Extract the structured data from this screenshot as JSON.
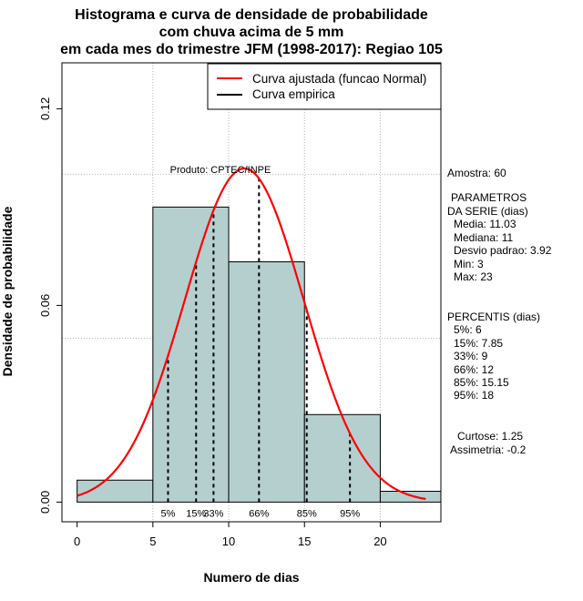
{
  "chart_data": {
    "type": "histogram",
    "title": [
      "Histograma e curva de densidade de probabilidade",
      "com chuva acima de 5 mm",
      "em cada mes do trimestre JFM (1998-2017): Regiao 105"
    ],
    "xlabel": "Numero de dias",
    "ylabel": "Densidade de probabilidade",
    "xlim": [
      -1,
      24
    ],
    "ylim": [
      -0.006,
      0.134
    ],
    "xticks": [
      0,
      5,
      10,
      15,
      20
    ],
    "xtick_labels": [
      "0",
      "5",
      "10",
      "15",
      "20"
    ],
    "yticks": [
      0.0,
      0.06,
      0.12
    ],
    "ytick_labels": [
      "0.00",
      "0.06",
      "0.12"
    ],
    "grid_x": [
      5,
      10,
      15,
      20
    ],
    "grid_y": [
      0.05,
      0.1
    ],
    "bins": [
      {
        "start": 0,
        "end": 5,
        "density": 0.0067
      },
      {
        "start": 5,
        "end": 10,
        "density": 0.09
      },
      {
        "start": 10,
        "end": 15,
        "density": 0.0733
      },
      {
        "start": 15,
        "end": 20,
        "density": 0.0267
      },
      {
        "start": 20,
        "end": 25,
        "density": 0.0033
      }
    ],
    "normal_fit": {
      "mean": 11.03,
      "sd": 3.92,
      "x_from": 0,
      "x_to": 23
    },
    "percentile_lines": [
      {
        "label": "5%",
        "x": 6
      },
      {
        "label": "15%",
        "x": 7.85
      },
      {
        "label": "33%",
        "x": 9
      },
      {
        "label": "66%",
        "x": 12
      },
      {
        "label": "85%",
        "x": 15.15
      },
      {
        "label": "95%",
        "x": 18
      }
    ],
    "legend": [
      {
        "label": "Curva ajustada (funcao Normal)",
        "color": "#ff0000"
      },
      {
        "label": "Curva empirica",
        "color": "#000000"
      }
    ],
    "annotation": "Produto: CPTEC/INPE",
    "colors": {
      "bar_fill": "#b5cfcf",
      "curve": "#ff0000",
      "grid": "#b3b3b3"
    }
  },
  "stats": {
    "amostra": "Amostra: 60",
    "parametros_title": [
      "PARAMETROS",
      "DA SERIE (dias)"
    ],
    "parametros": [
      "Media: 11.03",
      "Mediana: 11",
      "Desvio padrao: 3.92",
      "Min: 3",
      "Max: 23"
    ],
    "percentis_title": "PERCENTIS (dias)",
    "percentis": [
      "5%: 6",
      "15%: 7.85",
      "33%: 9",
      "66%: 12",
      "85%: 15.15",
      "95%: 18"
    ],
    "curtose": "Curtose: 1.25",
    "assimetria": "Assimetria: -0.2"
  }
}
